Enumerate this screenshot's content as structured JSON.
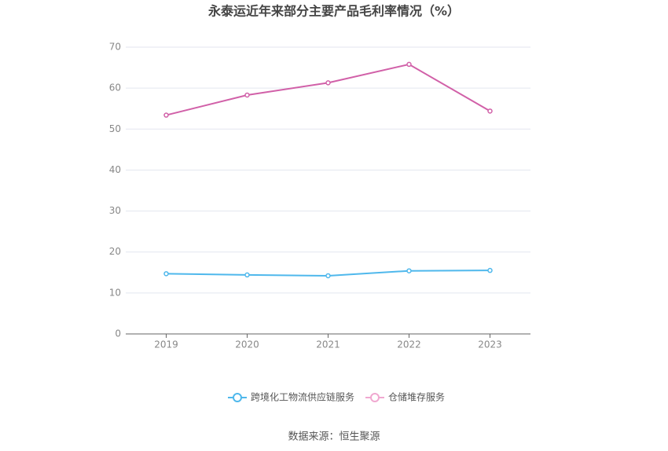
{
  "chart_data": {
    "type": "line",
    "title": "永泰运近年来部分主要产品毛利率情况（%）",
    "categories": [
      "2019",
      "2020",
      "2021",
      "2022",
      "2023"
    ],
    "series": [
      {
        "name": "跨境化工物流供应链服务",
        "color": "#4fb8ec",
        "values": [
          14.7,
          14.4,
          14.2,
          15.4,
          15.5
        ]
      },
      {
        "name": "仓储堆存服务",
        "color": "#d160a8",
        "values": [
          53.4,
          58.3,
          61.3,
          65.8,
          54.4
        ]
      }
    ],
    "ylim": [
      0,
      70
    ],
    "yticks": [
      0,
      10,
      20,
      30,
      40,
      50,
      60,
      70
    ],
    "grid": true,
    "legend": "bottom",
    "source": "数据来源：恒生聚源"
  }
}
